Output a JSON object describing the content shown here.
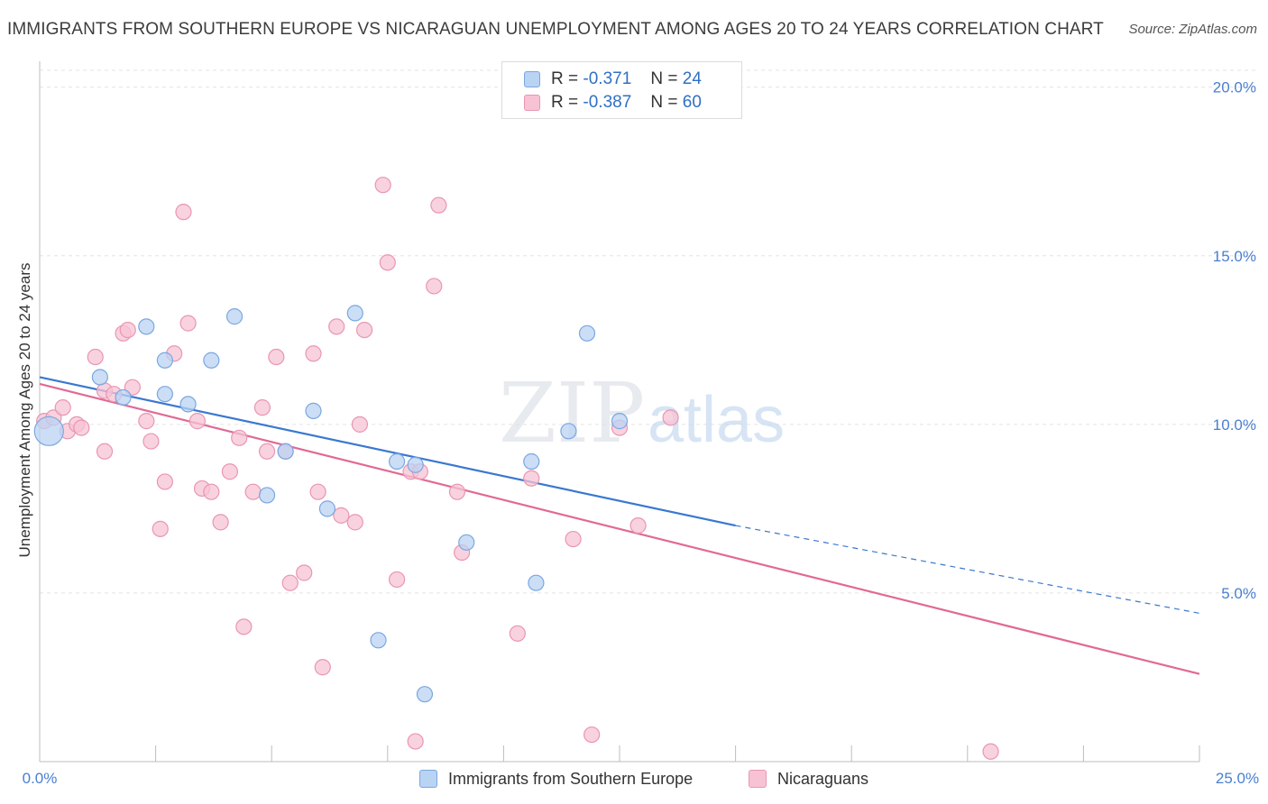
{
  "title": "IMMIGRANTS FROM SOUTHERN EUROPE VS NICARAGUAN UNEMPLOYMENT AMONG AGES 20 TO 24 YEARS CORRELATION CHART",
  "source": "Source: ZipAtlas.com",
  "watermark": {
    "zip": "ZIP",
    "atlas": "atlas"
  },
  "legend": {
    "rows": [
      {
        "r_label": "R =",
        "r_value": "-0.371",
        "n_label": "N =",
        "n_value": "24"
      },
      {
        "r_label": "R =",
        "r_value": "-0.387",
        "n_label": "N =",
        "n_value": "60"
      }
    ]
  },
  "colors": {
    "blue_fill": "#b9d3f3",
    "blue_stroke": "#7aa7e0",
    "blue_line": "#3a78d0",
    "pink_fill": "#f7c3d4",
    "pink_stroke": "#e996b2",
    "pink_line": "#e06a95",
    "axis_text": "#4a7fd0",
    "grid": "#e3e3e3"
  },
  "chart_data": {
    "type": "scatter",
    "title": "IMMIGRANTS FROM SOUTHERN EUROPE VS NICARAGUAN UNEMPLOYMENT AMONG AGES 20 TO 24 YEARS CORRELATION CHART",
    "xlabel": "",
    "ylabel": "Unemployment Among Ages 20 to 24 years",
    "xlim": [
      0,
      25
    ],
    "ylim": [
      0,
      20.5
    ],
    "x_tick_labels": [
      "0.0%",
      "25.0%"
    ],
    "y_ticks": [
      5,
      10,
      15,
      20
    ],
    "y_tick_labels": [
      "5.0%",
      "10.0%",
      "15.0%",
      "20.0%"
    ],
    "grid": true,
    "legend_position": "top-center",
    "series": [
      {
        "name": "Immigrants from Southern Europe",
        "color": "#b9d3f3",
        "points": [
          [
            0.2,
            9.8
          ],
          [
            1.3,
            11.4
          ],
          [
            1.8,
            10.8
          ],
          [
            2.3,
            12.9
          ],
          [
            2.7,
            10.9
          ],
          [
            2.7,
            11.9
          ],
          [
            3.2,
            10.6
          ],
          [
            3.7,
            11.9
          ],
          [
            4.2,
            13.2
          ],
          [
            4.9,
            7.9
          ],
          [
            5.3,
            9.2
          ],
          [
            5.9,
            10.4
          ],
          [
            6.2,
            7.5
          ],
          [
            6.8,
            13.3
          ],
          [
            7.3,
            3.6
          ],
          [
            7.7,
            8.9
          ],
          [
            8.1,
            8.8
          ],
          [
            8.3,
            2.0
          ],
          [
            9.2,
            6.5
          ],
          [
            10.6,
            8.9
          ],
          [
            10.7,
            5.3
          ],
          [
            11.4,
            9.8
          ],
          [
            11.8,
            12.7
          ],
          [
            12.5,
            10.1
          ]
        ],
        "trend": {
          "x_start": 0,
          "y_start": 11.4,
          "x_solid_end": 15,
          "y_solid_end": 7.0,
          "x_end": 25,
          "y_end": 4.4
        }
      },
      {
        "name": "Nicaraguans",
        "color": "#f7c3d4",
        "points": [
          [
            0.1,
            10.1
          ],
          [
            0.3,
            10.2
          ],
          [
            0.5,
            10.5
          ],
          [
            0.6,
            9.8
          ],
          [
            0.8,
            10.0
          ],
          [
            0.9,
            9.9
          ],
          [
            1.2,
            12.0
          ],
          [
            1.4,
            11.0
          ],
          [
            1.4,
            9.2
          ],
          [
            1.6,
            10.9
          ],
          [
            1.8,
            12.7
          ],
          [
            1.9,
            12.8
          ],
          [
            2.0,
            11.1
          ],
          [
            2.3,
            10.1
          ],
          [
            2.4,
            9.5
          ],
          [
            2.6,
            6.9
          ],
          [
            2.7,
            8.3
          ],
          [
            2.9,
            12.1
          ],
          [
            3.1,
            16.3
          ],
          [
            3.2,
            13.0
          ],
          [
            3.4,
            10.1
          ],
          [
            3.5,
            8.1
          ],
          [
            3.7,
            8.0
          ],
          [
            3.9,
            7.1
          ],
          [
            4.1,
            8.6
          ],
          [
            4.3,
            9.6
          ],
          [
            4.4,
            4.0
          ],
          [
            4.6,
            8.0
          ],
          [
            4.8,
            10.5
          ],
          [
            4.9,
            9.2
          ],
          [
            5.1,
            12.0
          ],
          [
            5.3,
            9.2
          ],
          [
            5.4,
            5.3
          ],
          [
            5.7,
            5.6
          ],
          [
            5.9,
            12.1
          ],
          [
            6.0,
            8.0
          ],
          [
            6.1,
            2.8
          ],
          [
            6.4,
            12.9
          ],
          [
            6.5,
            7.3
          ],
          [
            6.8,
            7.1
          ],
          [
            6.9,
            10.0
          ],
          [
            7.0,
            12.8
          ],
          [
            7.4,
            17.1
          ],
          [
            7.5,
            14.8
          ],
          [
            7.7,
            5.4
          ],
          [
            8.0,
            8.6
          ],
          [
            8.1,
            0.6
          ],
          [
            8.2,
            8.6
          ],
          [
            8.5,
            14.1
          ],
          [
            8.6,
            16.5
          ],
          [
            9.0,
            8.0
          ],
          [
            9.1,
            6.2
          ],
          [
            10.3,
            3.8
          ],
          [
            10.6,
            8.4
          ],
          [
            11.5,
            6.6
          ],
          [
            11.9,
            0.8
          ],
          [
            12.5,
            9.9
          ],
          [
            12.9,
            7.0
          ],
          [
            13.6,
            10.2
          ],
          [
            20.5,
            0.3
          ]
        ],
        "trend": {
          "x_start": 0,
          "y_start": 11.2,
          "x_end": 25,
          "y_end": 2.6
        }
      }
    ]
  }
}
